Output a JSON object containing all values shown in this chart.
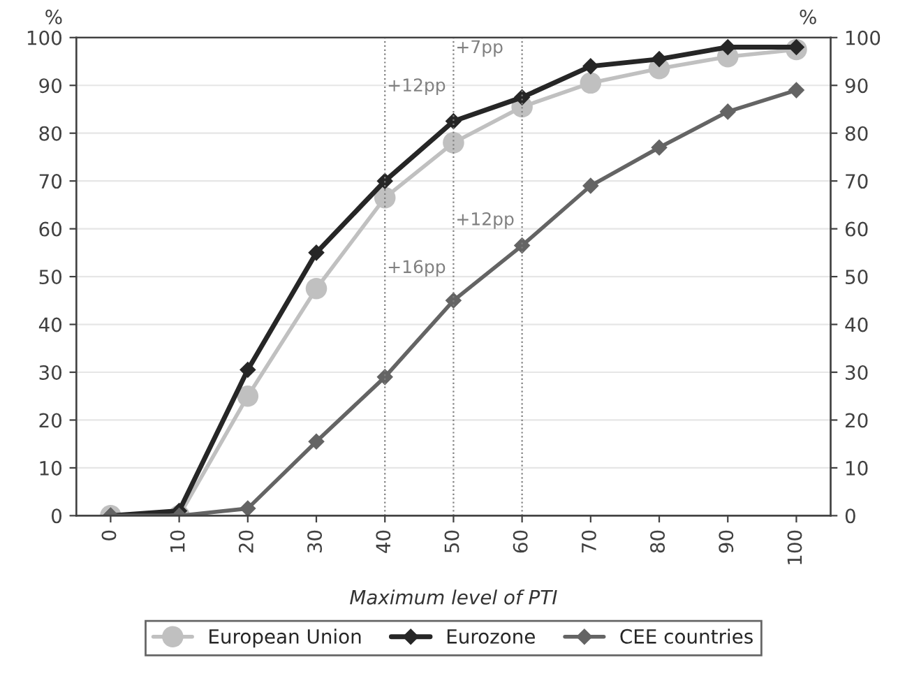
{
  "chart_data": {
    "type": "line",
    "xlabel": "Maximum level of PTI",
    "ylabel": "%",
    "y2label": "%",
    "categories": [
      "0",
      "10",
      "20",
      "30",
      "40",
      "50",
      "60",
      "70",
      "80",
      "90",
      "100"
    ],
    "series": [
      {
        "name": "European Union",
        "color": "#c0c0c0",
        "marker": "circle",
        "values": [
          0,
          0,
          25,
          47.5,
          66.5,
          78,
          85.5,
          90.5,
          93.5,
          96,
          97.5
        ]
      },
      {
        "name": "Eurozone",
        "color": "#262626",
        "marker": "diamond",
        "values": [
          0,
          1,
          30.5,
          55,
          70,
          82.5,
          87.5,
          94,
          95.5,
          98,
          98
        ]
      },
      {
        "name": "CEE countries",
        "color": "#646464",
        "marker": "diamond",
        "values": [
          0,
          0,
          1.5,
          15.5,
          29,
          45,
          56.5,
          69,
          77,
          84.5,
          89
        ]
      }
    ],
    "ylim": [
      0,
      100
    ],
    "yticks": [
      0,
      10,
      20,
      30,
      40,
      50,
      60,
      70,
      80,
      90,
      100
    ],
    "y2lim": [
      0,
      100
    ],
    "y2ticks": [
      0,
      10,
      20,
      30,
      40,
      50,
      60,
      70,
      80,
      90,
      100
    ],
    "ref_lines": [
      {
        "axis": "x",
        "value": "40",
        "color": "#808080",
        "line_style": "dotted"
      },
      {
        "axis": "x",
        "value": "50",
        "color": "#808080",
        "line_style": "dotted"
      },
      {
        "axis": "x",
        "value": "60",
        "color": "#808080",
        "line_style": "dotted"
      }
    ],
    "annotations": [
      {
        "text": "+12pp",
        "x": "40",
        "y": 88
      },
      {
        "text": "+7pp",
        "x": "50",
        "y": 96
      },
      {
        "text": "+16pp",
        "x": "40",
        "y": 50
      },
      {
        "text": "+12pp",
        "x": "50",
        "y": 60
      }
    ],
    "grid": "y",
    "legend": "bottom",
    "line_style": "solid"
  }
}
